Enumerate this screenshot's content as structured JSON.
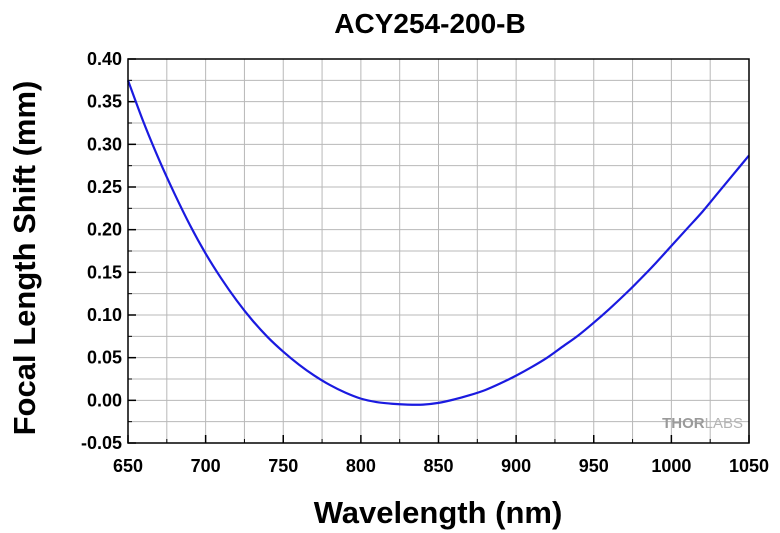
{
  "chart_data": {
    "type": "line",
    "title": "ACY254-200-B",
    "xlabel": "Wavelength (nm)",
    "ylabel": "Focal Length Shift (mm)",
    "xlim": [
      650,
      1050
    ],
    "ylim": [
      -0.05,
      0.4
    ],
    "xticks": [
      "650",
      "700",
      "750",
      "800",
      "850",
      "900",
      "950",
      "1000",
      "1050"
    ],
    "yticks": [
      "-0.05",
      "0.00",
      "0.05",
      "0.10",
      "0.15",
      "0.20",
      "0.25",
      "0.30",
      "0.35",
      "0.40"
    ],
    "grid": true,
    "series": [
      {
        "color": "#1a1ae0",
        "x": [
          650,
          660,
          670,
          680,
          690,
          700,
          710,
          720,
          730,
          740,
          750,
          760,
          770,
          780,
          790,
          800,
          810,
          820,
          830,
          840,
          850,
          860,
          870,
          880,
          890,
          900,
          910,
          920,
          930,
          940,
          950,
          960,
          970,
          980,
          990,
          1000,
          1010,
          1020,
          1030,
          1040,
          1050
        ],
        "y": [
          0.375,
          0.326,
          0.282,
          0.242,
          0.205,
          0.172,
          0.143,
          0.117,
          0.094,
          0.074,
          0.057,
          0.042,
          0.029,
          0.018,
          0.009,
          0.002,
          -0.002,
          -0.004,
          -0.005,
          -0.005,
          -0.003,
          0.001,
          0.006,
          0.012,
          0.02,
          0.029,
          0.039,
          0.05,
          0.063,
          0.076,
          0.091,
          0.107,
          0.124,
          0.142,
          0.161,
          0.181,
          0.201,
          0.221,
          0.243,
          0.265,
          0.287
        ]
      }
    ]
  },
  "watermark": {
    "part1": "THOR",
    "part2": "LABS"
  }
}
